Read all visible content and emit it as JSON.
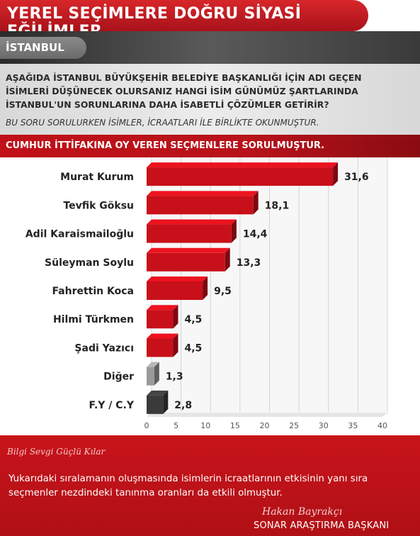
{
  "header": {
    "title": "YEREL SEÇİMLERE DOĞRU SİYASİ EĞİLİMLER",
    "city": "İSTANBUL"
  },
  "question": {
    "text": "AŞAĞIDA İSTANBUL BÜYÜKŞEHİR BELEDİYE BAŞKANLIĞI İÇİN ADI GEÇEN İSİMLERİ DÜŞÜNECEK OLURSANIZ HANGİ İSİM GÜNÜMÜZ ŞARTLARINDA İSTANBUL'UN SORUNLARINA DAHA İSABETLİ ÇÖZÜMLER GETİRİR?",
    "note": "BU SORU SORULURKEN İSİMLER, İCRAATLARI İLE BİRLİKTE OKUNMUŞTUR."
  },
  "subtitle": "CUMHUR İTTİFAKINA OY VEREN SEÇMENLERE SORULMUŞTUR.",
  "chart_data": {
    "type": "bar",
    "orientation": "horizontal",
    "categories": [
      "Murat Kurum",
      "Tevfik Göksu",
      "Adil Karaismailoğlu",
      "Süleyman Soylu",
      "Fahrettin Koca",
      "Hilmi Türkmen",
      "Şadi Yazıcı",
      "Diğer",
      "F.Y / C.Y"
    ],
    "values": [
      31.6,
      18.1,
      14.4,
      13.3,
      9.5,
      4.5,
      4.5,
      1.3,
      2.8
    ],
    "value_labels": [
      "31,6",
      "18,1",
      "14,4",
      "13,3",
      "9,5",
      "4,5",
      "4,5",
      "1,3",
      "2,8"
    ],
    "bar_colors": [
      "#c8101a",
      "#c8101a",
      "#c8101a",
      "#c8101a",
      "#c8101a",
      "#c8101a",
      "#c8101a",
      "#9a9a9a",
      "#3a3a3a"
    ],
    "xlim": [
      0,
      40
    ],
    "xticks": [
      0,
      5,
      10,
      15,
      20,
      25,
      30,
      35,
      40
    ],
    "grid": true
  },
  "footer": {
    "signature_left": "Bilgi Sevgi Güçlü Kılar",
    "body": "Yukarıdaki sıralamanın oluşmasında isimlerin icraatlarının etkisinin yanı sıra seçmenler nezdindeki tanınma oranları da etkili olmuştur.",
    "signature_right": "Hakan Bayrakçı",
    "role": "SONAR ARAŞTIRMA BAŞKANI"
  }
}
